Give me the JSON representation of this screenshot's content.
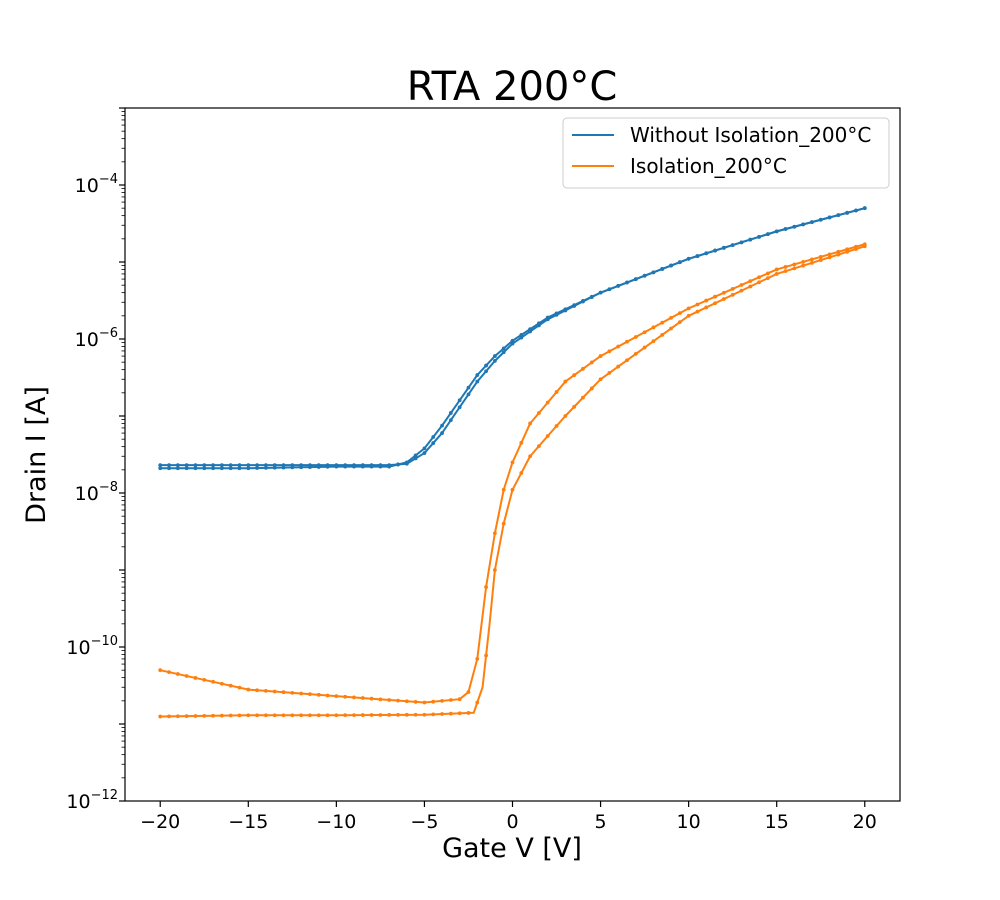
{
  "chart_data": {
    "type": "line",
    "title": "RTA 200°C",
    "xlabel": "Gate V [V]",
    "ylabel": "Drain I [A]",
    "xlim": [
      -22,
      22
    ],
    "ylim": [
      1e-12,
      0.001
    ],
    "yscale": "log",
    "xticks": [
      -20,
      -15,
      -10,
      -5,
      0,
      5,
      10,
      15,
      20
    ],
    "xtick_labels": [
      "−20",
      "−15",
      "−10",
      "−5",
      "0",
      "5",
      "10",
      "15",
      "20"
    ],
    "yticks": [
      {
        "value": 1e-12,
        "base": "10",
        "exp": "−12"
      },
      {
        "value": 1e-10,
        "base": "10",
        "exp": "−10"
      },
      {
        "value": 1e-08,
        "base": "10",
        "exp": "−8"
      },
      {
        "value": 1e-06,
        "base": "10",
        "exp": "−6"
      },
      {
        "value": 0.0001,
        "base": "10",
        "exp": "−4"
      }
    ],
    "grid": false,
    "legend": {
      "position": "top-right",
      "entries": [
        "Without Isolation_200°C",
        "Isolation_200°C"
      ]
    },
    "series": [
      {
        "name": "Without Isolation_200°C",
        "color": "#1f77b4",
        "sweeps": [
          {
            "direction": "forward",
            "x": [
              -20,
              -15,
              -10,
              -7,
              -6,
              -5,
              -4,
              -3,
              -2,
              -1,
              0,
              2,
              5,
              10,
              15,
              20
            ],
            "y": [
              2.3e-08,
              2.3e-08,
              2.3e-08,
              2.3e-08,
              2.4e-08,
              3.3e-08,
              6e-08,
              1.3e-07,
              2.8e-07,
              5.2e-07,
              8.7e-07,
              1.8e-06,
              4e-06,
              1.1e-05,
              2.5e-05,
              5e-05
            ]
          },
          {
            "direction": "reverse",
            "x": [
              20,
              15,
              10,
              5,
              2,
              0,
              -1,
              -2,
              -3,
              -4,
              -5,
              -6,
              -7,
              -10,
              -15,
              -20
            ],
            "y": [
              5e-05,
              2.5e-05,
              1.1e-05,
              4e-06,
              1.9e-06,
              9.5e-07,
              6e-07,
              3.4e-07,
              1.6e-07,
              7.5e-08,
              3.8e-08,
              2.5e-08,
              2.2e-08,
              2.2e-08,
              2.1e-08,
              2.1e-08
            ]
          }
        ]
      },
      {
        "name": "Isolation_200°C",
        "color": "#ff7f0e",
        "sweeps": [
          {
            "direction": "forward",
            "x": [
              -20,
              -15,
              -10,
              -5,
              -2.2,
              -1.7,
              -1.3,
              -1,
              -0.5,
              0,
              1,
              2,
              3,
              5,
              10,
              15,
              20
            ],
            "y": [
              1.25e-11,
              1.3e-11,
              1.3e-11,
              1.32e-11,
              1.4e-11,
              3e-11,
              2e-10,
              1e-09,
              4e-09,
              1.1e-08,
              3e-08,
              5.5e-08,
              1e-07,
              3e-07,
              2e-06,
              7e-06,
              1.6e-05
            ]
          },
          {
            "direction": "reverse",
            "x": [
              20,
              15,
              10,
              5,
              3,
              1,
              0,
              -0.5,
              -1,
              -1.5,
              -2,
              -2.5,
              -3,
              -5,
              -10,
              -15,
              -20
            ],
            "y": [
              1.7e-05,
              8e-06,
              2.5e-06,
              6e-07,
              2.8e-07,
              8e-08,
              2.5e-08,
              1.1e-08,
              3e-09,
              6e-10,
              7e-11,
              2.6e-11,
              2.1e-11,
              1.9e-11,
              2.3e-11,
              2.8e-11,
              5e-11
            ]
          }
        ]
      }
    ]
  }
}
